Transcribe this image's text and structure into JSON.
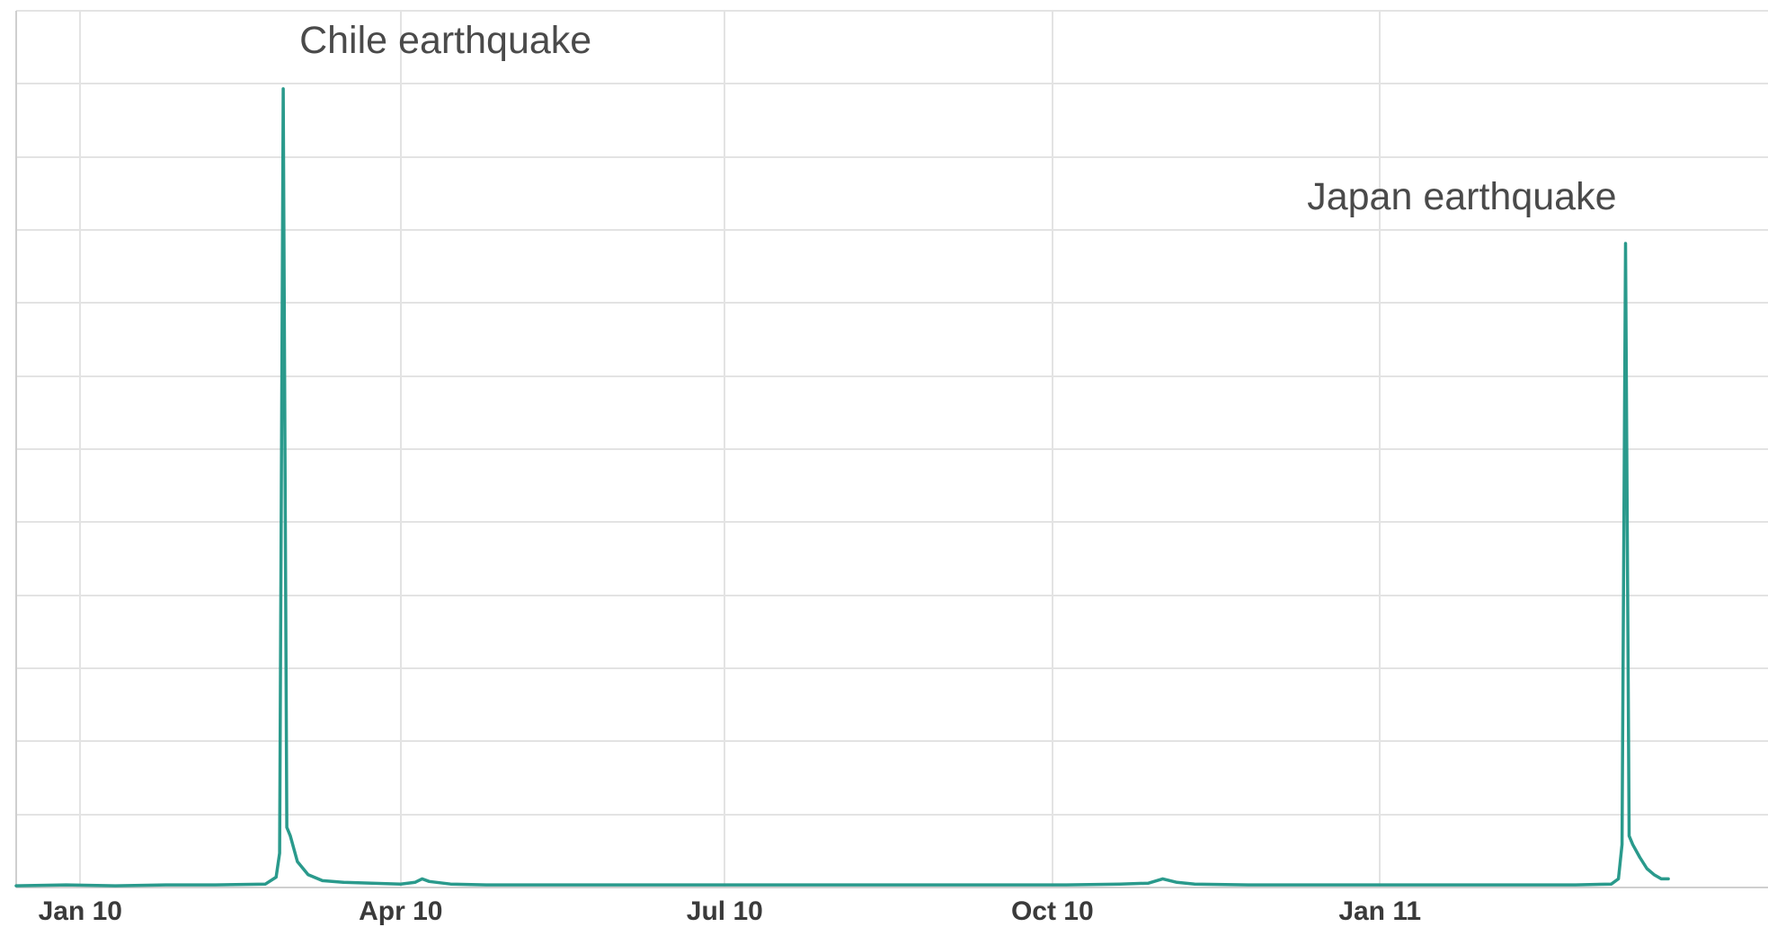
{
  "chart_data": {
    "type": "line",
    "title": "",
    "xlabel": "",
    "ylabel": "",
    "x_tick_labels": [
      "Jan 10",
      "Apr 10",
      "Jul 10",
      "Oct 10",
      "Jan 11"
    ],
    "x_ticks": [
      "2010-01-01",
      "2010-04-01",
      "2010-07-01",
      "2010-10-01",
      "2011-01-01"
    ],
    "x_range": [
      "2009-12-14",
      "2011-04-20"
    ],
    "ylim": [
      0,
      100
    ],
    "y_gridlines": 12,
    "y_tick_labels": [],
    "grid": true,
    "legend": "none",
    "line_color": "#2a9a8c",
    "annotations": [
      {
        "text": "Chile earthquake",
        "x": "2010-02-27",
        "y": 93
      },
      {
        "text": "Japan earthquake",
        "x": "2011-03-11",
        "y": 75
      }
    ],
    "series": [
      {
        "x": [
          "2009-12-14",
          "2009-12-28",
          "2010-01-11",
          "2010-01-25",
          "2010-02-08",
          "2010-02-22",
          "2010-02-25",
          "2010-02-26",
          "2010-02-27",
          "2010-02-28",
          "2010-03-01",
          "2010-03-03",
          "2010-03-06",
          "2010-03-10",
          "2010-03-16",
          "2010-03-24",
          "2010-04-01",
          "2010-04-05",
          "2010-04-07",
          "2010-04-09",
          "2010-04-15",
          "2010-04-25",
          "2010-05-15",
          "2010-06-05",
          "2010-06-25",
          "2010-07-15",
          "2010-08-05",
          "2010-08-25",
          "2010-09-15",
          "2010-10-05",
          "2010-10-20",
          "2010-10-28",
          "2010-11-01",
          "2010-11-05",
          "2010-11-10",
          "2010-11-25",
          "2010-12-10",
          "2010-12-25",
          "2011-01-10",
          "2011-01-25",
          "2011-02-10",
          "2011-02-25",
          "2011-03-07",
          "2011-03-09",
          "2011-03-10",
          "2011-03-11",
          "2011-03-12",
          "2011-03-13",
          "2011-03-15",
          "2011-03-17",
          "2011-03-19",
          "2011-03-21",
          "2011-03-23"
        ],
        "y": [
          0.2,
          0.3,
          0.2,
          0.3,
          0.3,
          0.4,
          1.2,
          4.0,
          93.0,
          7.0,
          6.0,
          3.0,
          1.5,
          0.8,
          0.6,
          0.5,
          0.4,
          0.6,
          1.0,
          0.7,
          0.4,
          0.3,
          0.3,
          0.3,
          0.3,
          0.3,
          0.3,
          0.3,
          0.3,
          0.3,
          0.4,
          0.5,
          1.0,
          0.6,
          0.4,
          0.3,
          0.3,
          0.3,
          0.3,
          0.3,
          0.3,
          0.3,
          0.4,
          1.0,
          5.0,
          75.0,
          6.0,
          5.0,
          3.5,
          2.2,
          1.5,
          1.0,
          1.0
        ]
      }
    ]
  }
}
